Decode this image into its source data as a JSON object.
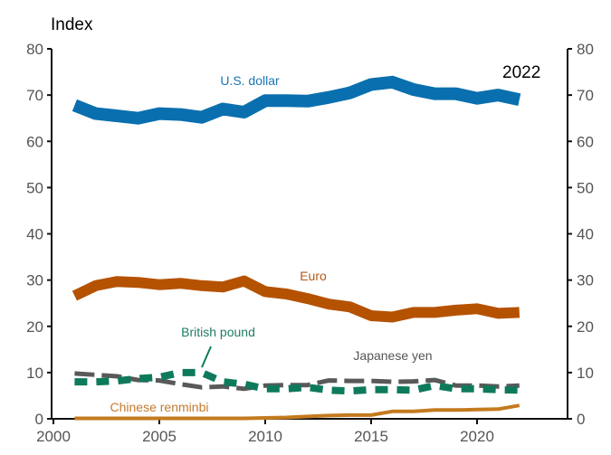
{
  "chart_data": {
    "type": "line",
    "ylabel": "Index",
    "annotation": "2022",
    "ylim": [
      0,
      80
    ],
    "xlim": [
      2000,
      2024
    ],
    "yticks": [
      "0",
      "10",
      "20",
      "30",
      "40",
      "50",
      "60",
      "70",
      "80"
    ],
    "xticks": [
      "2000",
      "2005",
      "2010",
      "2015",
      "2020"
    ],
    "x": [
      2001,
      2002,
      2003,
      2004,
      2005,
      2006,
      2007,
      2008,
      2009,
      2010,
      2011,
      2012,
      2013,
      2014,
      2015,
      2016,
      2017,
      2018,
      2019,
      2020,
      2021,
      2022
    ],
    "series": [
      {
        "name": "U.S. dollar",
        "color": "#0a6fae",
        "style": "solid",
        "values": [
          67.8,
          66,
          65.5,
          65,
          66,
          65.8,
          65.2,
          67,
          66.3,
          68.8,
          68.8,
          68.7,
          69.5,
          70.5,
          72.3,
          72.8,
          71.2,
          70.3,
          70.3,
          69.3,
          70,
          69
        ]
      },
      {
        "name": "Euro",
        "color": "#b55200",
        "style": "solid",
        "values": [
          26.6,
          28.8,
          29.7,
          29.5,
          29,
          29.3,
          28.8,
          28.5,
          29.8,
          27.5,
          27,
          26,
          24.8,
          24.2,
          22.3,
          22,
          23,
          23,
          23.5,
          23.8,
          22.8,
          23
        ]
      },
      {
        "name": "British pound",
        "color": "#0e7a5c",
        "style": "dashed",
        "values": [
          8,
          8,
          8.2,
          8.7,
          9,
          10,
          10,
          8,
          7.5,
          6.5,
          6.5,
          6.8,
          6.2,
          6,
          6.3,
          6.3,
          6.2,
          7.2,
          6.5,
          6.5,
          6.3,
          6.2
        ]
      },
      {
        "name": "Japanese yen",
        "color": "#595959",
        "style": "dashed",
        "values": [
          9.8,
          9.5,
          9.2,
          8.4,
          8.3,
          7.5,
          6.8,
          7,
          6.5,
          7.2,
          7.3,
          7.3,
          8.3,
          8.2,
          8.2,
          8.0,
          8.1,
          8.4,
          7.2,
          7.2,
          7,
          7.2
        ]
      },
      {
        "name": "Chinese renminbi",
        "color": "#c47a1e",
        "style": "solid",
        "values": [
          0.1,
          0.1,
          0.1,
          0.1,
          0.1,
          0.1,
          0.1,
          0.1,
          0.1,
          0.2,
          0.3,
          0.5,
          0.7,
          0.8,
          0.8,
          1.6,
          1.6,
          1.9,
          1.9,
          2,
          2.1,
          2.9
        ]
      }
    ]
  }
}
